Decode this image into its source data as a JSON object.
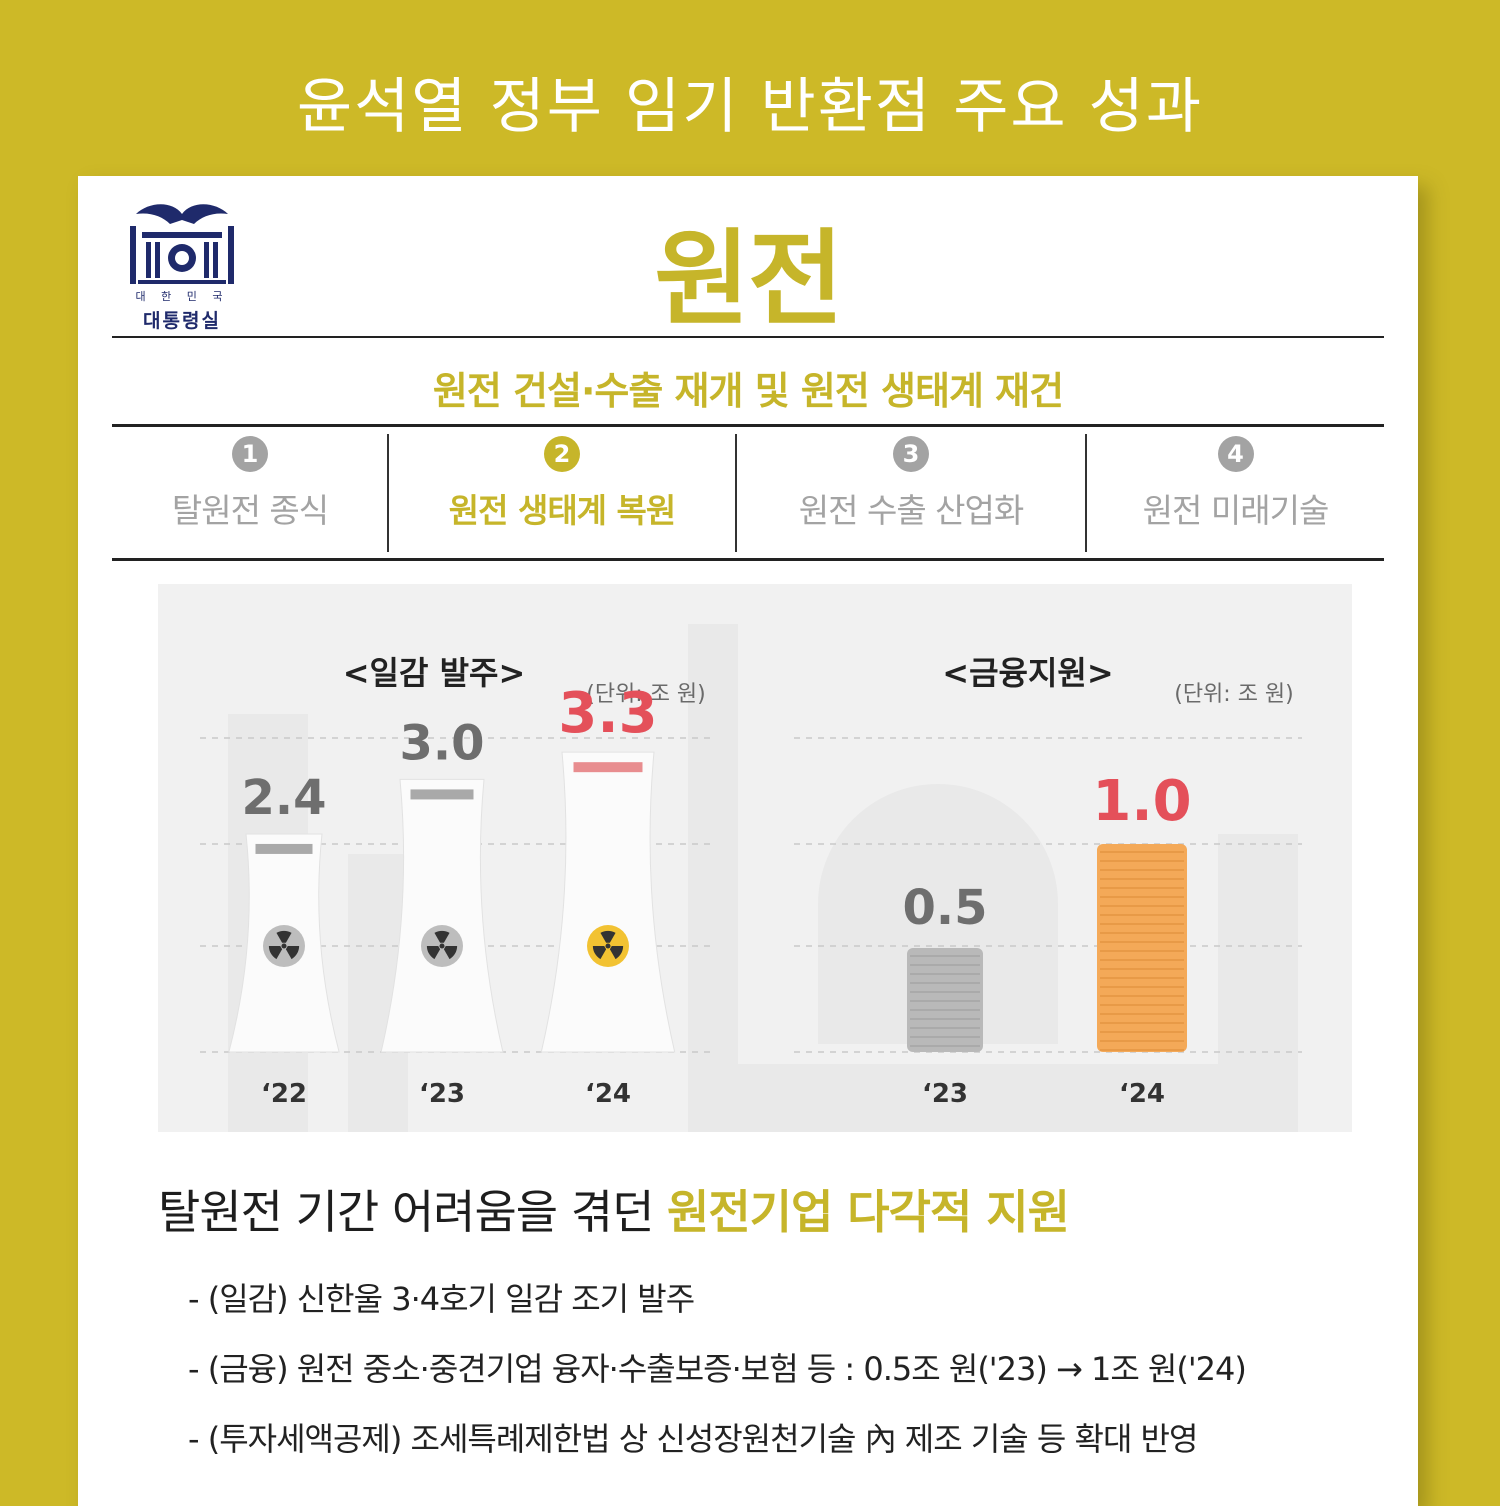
{
  "page_title": "윤석열 정부 임기 반환점 주요 성과",
  "logo": {
    "small_text": "대 한 민 국",
    "name": "대통령실"
  },
  "main_title": "원전",
  "subtitle": "원전 건설·수출 재개 및 원전 생태계 재건",
  "tabs": [
    {
      "num": "1",
      "label": "탈원전 종식",
      "active": false
    },
    {
      "num": "2",
      "label": "원전 생태계 복원",
      "active": true
    },
    {
      "num": "3",
      "label": "원전 수출 산업화",
      "active": false
    },
    {
      "num": "4",
      "label": "원전 미래기술",
      "active": false
    }
  ],
  "chart_data": [
    {
      "type": "bar",
      "title": "<일감 발주>",
      "unit": "(단위: 조 원)",
      "categories": [
        "‘22",
        "‘23",
        "‘24"
      ],
      "values": [
        2.4,
        3.0,
        3.3
      ],
      "value_labels": [
        "2.4",
        "3.0",
        "3.3"
      ],
      "highlight": "‘24",
      "colors": {
        "normal": "#6e6e6e",
        "highlight": "#e4505a"
      }
    },
    {
      "type": "bar",
      "title": "<금융지원>",
      "unit": "(단위: 조 원)",
      "categories": [
        "‘23",
        "‘24"
      ],
      "values": [
        0.5,
        1.0
      ],
      "value_labels": [
        "0.5",
        "1.0"
      ],
      "highlight": "‘24",
      "colors": {
        "normal": "#6e6e6e",
        "highlight": "#e4505a",
        "coin_gray": "#b9b9b9",
        "coin_orange": "#f4a958"
      }
    }
  ],
  "headline": {
    "normal": "탈원전 기간 어려움을 겪던 ",
    "highlight": "원전기업 다각적 지원"
  },
  "bullets": [
    "- (일감) 신한울 3·4호기 일감 조기 발주",
    "- (금융) 원전 중소·중견기업 융자·수출보증·보험 등 : 0.5조 원('23)  → 1조 원('24)",
    "- (투자세액공제) 조세특례제한법 상 신성장원천기술 內 제조 기술 등 확대 반영"
  ],
  "colors": {
    "background": "#cdb927",
    "accent": "#c6b52a",
    "tab_inactive": "#a3a3a3"
  }
}
